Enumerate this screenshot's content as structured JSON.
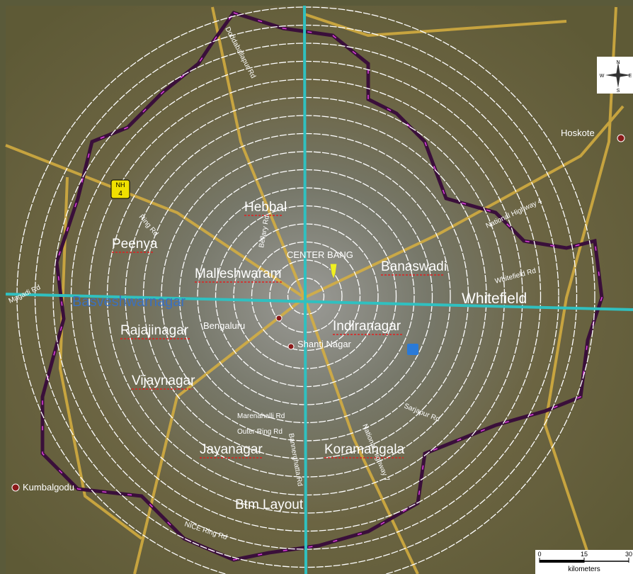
{
  "map": {
    "places": [
      "Hebbal",
      "Peenya",
      "Malleshwaram",
      "CENTER BANG",
      "Banaswadi",
      "Whitefield",
      "Basveshwarnagar",
      "Rajajinagar",
      "Bengaluru",
      "Indiranagar",
      "Shanti Nagar",
      "Vijaynagar",
      "Jayanagar",
      "Koramangala",
      "Btm Layout",
      "Kumbalgodu",
      "Hoskote"
    ],
    "roads": [
      "Doddaballapur Rd",
      "Ring Rd",
      "Bellary Rd",
      "National Highway 4",
      "Whitefield Rd",
      "Magadi Rd",
      "Marenahalli Rd",
      "Outer Ring Rd",
      "Bannerghatta Rd",
      "National Highway 7",
      "Sarjapur Rd",
      "NICE Ring Rd"
    ],
    "shield": [
      "NH",
      "4"
    ],
    "compass": [
      "N",
      "E",
      "S",
      "W"
    ],
    "scale": {
      "ticks": [
        0,
        15,
        30
      ],
      "unit": "kilometers"
    }
  }
}
